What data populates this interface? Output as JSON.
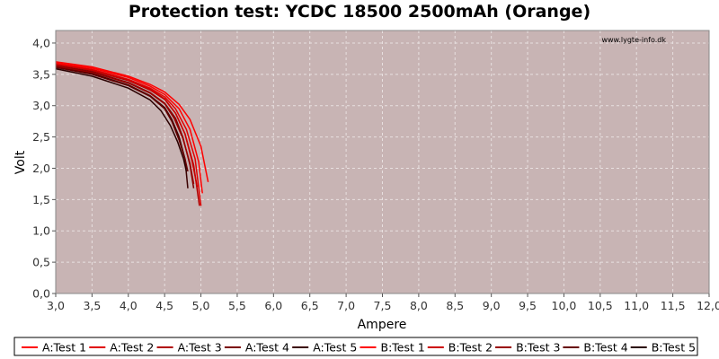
{
  "chart_data": {
    "type": "line",
    "title": "Protection test: YCDC 18500 2500mAh (Orange)",
    "watermark": "www.lygte-info.dk",
    "xlabel": "Ampere",
    "ylabel": "Volt",
    "xlim": [
      3.0,
      12.0
    ],
    "ylim": [
      0.0,
      4.2
    ],
    "x_ticks": [
      "3,0",
      "3,5",
      "4,0",
      "4,5",
      "5,0",
      "5,5",
      "6,0",
      "6,5",
      "7,0",
      "7,5",
      "8,0",
      "8,5",
      "9,0",
      "9,5",
      "10,0",
      "10,5",
      "11,0",
      "11,5",
      "12,0"
    ],
    "y_ticks": [
      "0,0",
      "0,5",
      "1,0",
      "1,5",
      "2,0",
      "2,5",
      "3,0",
      "3,5",
      "4,0"
    ],
    "grid": true,
    "legend_position": "bottom",
    "background_color": "#c8b4b4",
    "series": [
      {
        "name": "A:Test 1",
        "color": "#ff0000",
        "points": [
          [
            3.0,
            3.7
          ],
          [
            3.5,
            3.62
          ],
          [
            4.0,
            3.47
          ],
          [
            4.3,
            3.34
          ],
          [
            4.5,
            3.22
          ],
          [
            4.7,
            3.02
          ],
          [
            4.85,
            2.78
          ],
          [
            5.0,
            2.35
          ],
          [
            5.1,
            1.78
          ]
        ]
      },
      {
        "name": "A:Test 2",
        "color": "#e00000",
        "points": [
          [
            3.0,
            3.67
          ],
          [
            3.5,
            3.58
          ],
          [
            4.0,
            3.42
          ],
          [
            4.3,
            3.28
          ],
          [
            4.5,
            3.14
          ],
          [
            4.65,
            2.95
          ],
          [
            4.8,
            2.62
          ],
          [
            4.92,
            2.15
          ],
          [
            5.0,
            1.4
          ]
        ]
      },
      {
        "name": "A:Test 3",
        "color": "#b00000",
        "points": [
          [
            3.0,
            3.66
          ],
          [
            3.5,
            3.56
          ],
          [
            4.0,
            3.4
          ],
          [
            4.3,
            3.25
          ],
          [
            4.5,
            3.1
          ],
          [
            4.65,
            2.88
          ],
          [
            4.78,
            2.55
          ],
          [
            4.9,
            2.05
          ],
          [
            4.98,
            1.4
          ]
        ]
      },
      {
        "name": "A:Test 4",
        "color": "#7a0000",
        "points": [
          [
            3.0,
            3.64
          ],
          [
            3.5,
            3.54
          ],
          [
            4.0,
            3.37
          ],
          [
            4.3,
            3.21
          ],
          [
            4.5,
            3.04
          ],
          [
            4.65,
            2.8
          ],
          [
            4.75,
            2.5
          ],
          [
            4.85,
            2.05
          ],
          [
            4.9,
            1.68
          ]
        ]
      },
      {
        "name": "A:Test 5",
        "color": "#3a0000",
        "points": [
          [
            3.0,
            3.62
          ],
          [
            3.5,
            3.51
          ],
          [
            4.0,
            3.33
          ],
          [
            4.3,
            3.16
          ],
          [
            4.5,
            2.97
          ],
          [
            4.6,
            2.78
          ],
          [
            4.7,
            2.5
          ],
          [
            4.78,
            2.15
          ],
          [
            4.82,
            1.68
          ]
        ]
      },
      {
        "name": "B:Test 1",
        "color": "#ff0000",
        "points": [
          [
            3.0,
            3.68
          ],
          [
            3.5,
            3.6
          ],
          [
            4.0,
            3.45
          ],
          [
            4.3,
            3.31
          ],
          [
            4.5,
            3.18
          ],
          [
            4.7,
            2.95
          ],
          [
            4.85,
            2.62
          ],
          [
            4.97,
            2.1
          ],
          [
            5.02,
            1.6
          ]
        ]
      },
      {
        "name": "B:Test 2",
        "color": "#cc0000",
        "points": [
          [
            3.0,
            3.66
          ],
          [
            3.5,
            3.57
          ],
          [
            4.0,
            3.41
          ],
          [
            4.3,
            3.26
          ],
          [
            4.5,
            3.11
          ],
          [
            4.65,
            2.88
          ],
          [
            4.78,
            2.55
          ],
          [
            4.88,
            2.1
          ],
          [
            4.95,
            1.7
          ]
        ]
      },
      {
        "name": "B:Test 3",
        "color": "#990000",
        "points": [
          [
            3.0,
            3.63
          ],
          [
            3.5,
            3.53
          ],
          [
            4.0,
            3.36
          ],
          [
            4.3,
            3.2
          ],
          [
            4.5,
            3.03
          ],
          [
            4.63,
            2.8
          ],
          [
            4.75,
            2.48
          ],
          [
            4.85,
            2.08
          ],
          [
            4.9,
            1.75
          ]
        ]
      },
      {
        "name": "B:Test 4",
        "color": "#660000",
        "points": [
          [
            3.0,
            3.61
          ],
          [
            3.5,
            3.5
          ],
          [
            4.0,
            3.32
          ],
          [
            4.3,
            3.15
          ],
          [
            4.5,
            2.95
          ],
          [
            4.6,
            2.75
          ],
          [
            4.7,
            2.45
          ],
          [
            4.78,
            2.15
          ],
          [
            4.82,
            1.95
          ]
        ]
      },
      {
        "name": "B:Test 5",
        "color": "#2a0000",
        "points": [
          [
            3.0,
            3.59
          ],
          [
            3.5,
            3.47
          ],
          [
            4.0,
            3.28
          ],
          [
            4.3,
            3.09
          ],
          [
            4.45,
            2.92
          ],
          [
            4.58,
            2.68
          ],
          [
            4.68,
            2.42
          ],
          [
            4.76,
            2.15
          ],
          [
            4.8,
            1.95
          ]
        ]
      }
    ]
  }
}
